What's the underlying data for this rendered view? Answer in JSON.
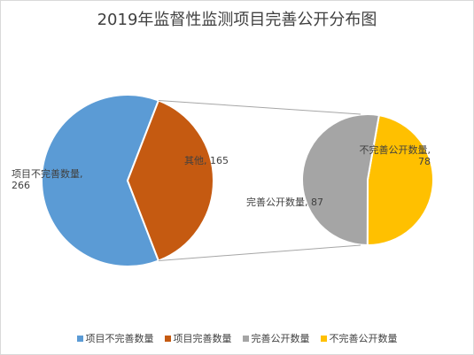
{
  "chart_data": {
    "type": "pie",
    "subtype": "pie-of-pie",
    "title": "2019年监督性监测项目完善公开分布图",
    "legend_position": "bottom",
    "main_pie": [
      {
        "name": "项目不完善数量",
        "value": 266,
        "color": "#5b9bd5",
        "label_text": "项目不完善数量,",
        "label_value": "266"
      },
      {
        "name": "项目完善数量",
        "value": 165,
        "color": "#c55a11",
        "label_text": "其他,",
        "label_value": "165"
      }
    ],
    "secondary_pie": [
      {
        "name": "完善公开数量",
        "value": 87,
        "color": "#a5a5a5",
        "label_text": "完善公开数量,",
        "label_value": "87"
      },
      {
        "name": "不完善公开数量",
        "value": 78,
        "color": "#ffc000",
        "label_text": "不完善公开数量,",
        "label_value": "78"
      }
    ],
    "legend": [
      {
        "label": "项目不完善数量",
        "color": "#5b9bd5"
      },
      {
        "label": "项目完善数量",
        "color": "#c55a11"
      },
      {
        "label": "完善公开数量",
        "color": "#a5a5a5"
      },
      {
        "label": "不完善公开数量",
        "color": "#ffc000"
      }
    ]
  }
}
